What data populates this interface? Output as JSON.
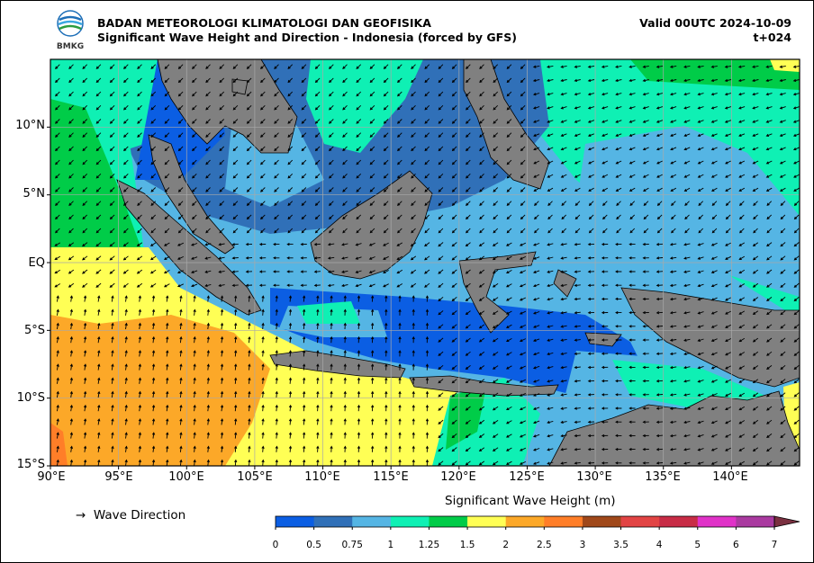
{
  "header": {
    "org": "BADAN METEOROLOGI KLIMATOLOGI DAN GEOFISIKA",
    "subtitle": "Significant Wave Height and Direction - Indonesia (forced by GFS)",
    "valid": "Valid 00UTC 2024-10-09",
    "lead": "t+024",
    "logo_text": "BMKG"
  },
  "map": {
    "lon_range": [
      90,
      145
    ],
    "lat_range": [
      -15,
      15
    ],
    "lat_labels": [
      "10°N",
      "5°N",
      "EQ",
      "5°S",
      "10°S",
      "15°S"
    ],
    "lon_labels": [
      "90°E",
      "95°E",
      "100°E",
      "105°E",
      "110°E",
      "115°E",
      "120°E",
      "125°E",
      "130°E",
      "135°E",
      "140°E"
    ],
    "land_color": "#808080"
  },
  "legend": {
    "arrow_symbol": "→",
    "label": "Wave Direction"
  },
  "colorbar": {
    "title": "Significant Wave Height (m)",
    "ticks": [
      "0",
      "0.5",
      "0.75",
      "1",
      "1.25",
      "1.5",
      "2",
      "2.5",
      "3",
      "3.5",
      "4",
      "5",
      "6",
      "7"
    ],
    "colors": [
      "#0b5ee3",
      "#3070b8",
      "#55b5e4",
      "#0ff0b4",
      "#00cc48",
      "#ffff55",
      "#fca828",
      "#ff7e28",
      "#a0481a",
      "#e24444",
      "#c82c46",
      "#e032c8",
      "#aa3aa0"
    ],
    "extend_color": "#7a3040"
  }
}
